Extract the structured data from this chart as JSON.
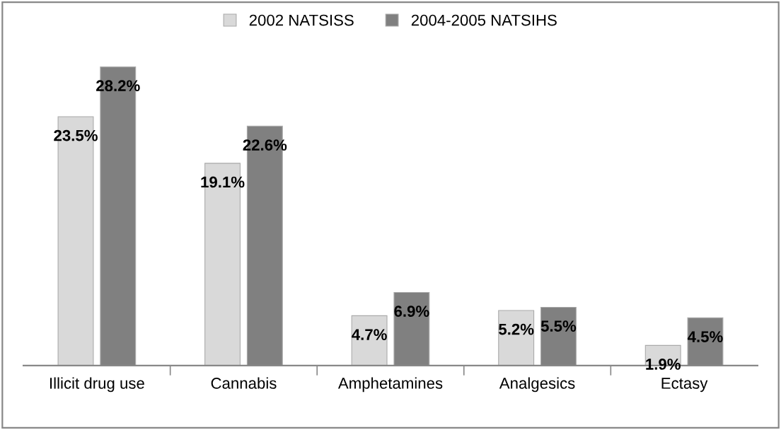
{
  "chart_data": {
    "type": "bar",
    "categories": [
      "Illicit drug use",
      "Cannabis",
      "Amphetamines",
      "Analgesics",
      "Ectasy"
    ],
    "series": [
      {
        "name": "2002 NATSISS",
        "color": "#d9d9d9",
        "values": [
          23.5,
          19.1,
          4.7,
          5.2,
          1.9
        ],
        "value_labels": [
          "23.5%",
          "19.1%",
          "4.7%",
          "5.2%",
          "1.9%"
        ]
      },
      {
        "name": "2004-2005 NATSIHS",
        "color": "#808080",
        "values": [
          28.2,
          22.6,
          6.9,
          5.5,
          4.5
        ],
        "value_labels": [
          "28.2%",
          "22.6%",
          "6.9%",
          "5.5%",
          "4.5%"
        ]
      }
    ],
    "grid": false,
    "legend": "top"
  }
}
